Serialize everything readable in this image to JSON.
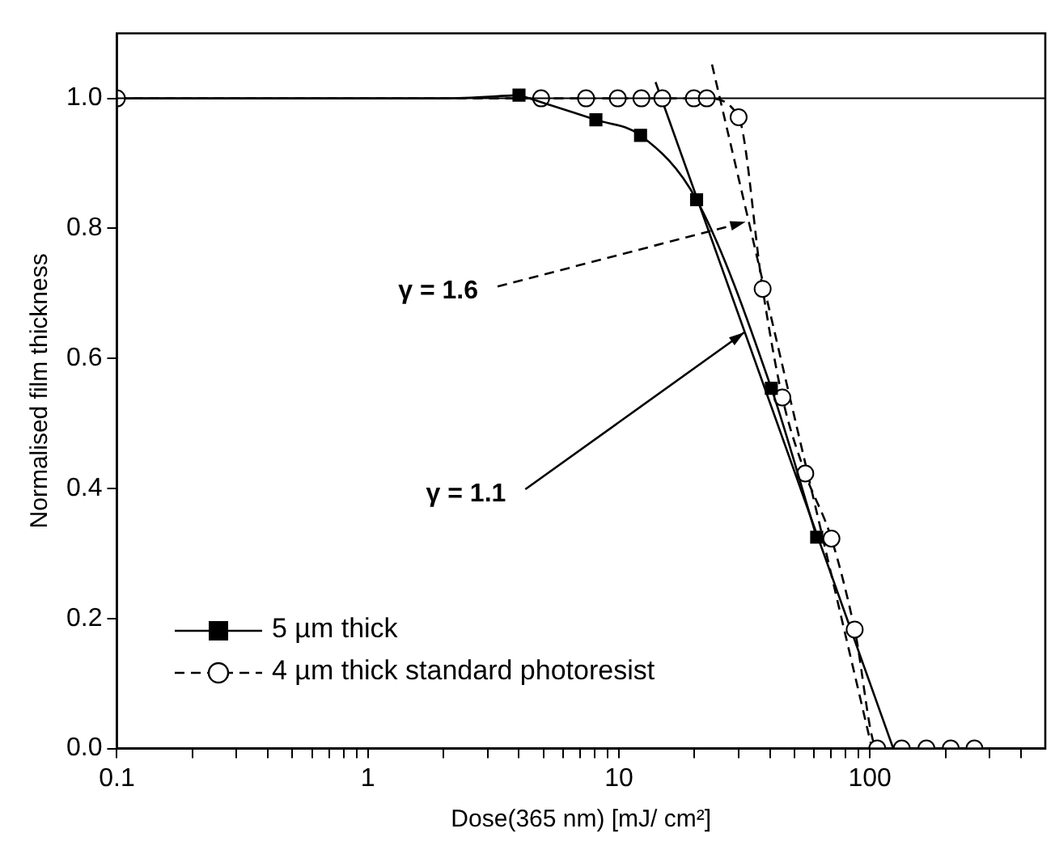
{
  "chart_data": {
    "type": "line",
    "xlabel": "Dose(365 nm) [mJ/ cm²]",
    "ylabel": "Normalised film thickness",
    "log": "x",
    "grid": false,
    "legend": "bottom left",
    "xlim": [
      0.1,
      500
    ],
    "ylim": [
      0,
      1.1
    ],
    "xticks": [
      0.1,
      {
        "value": 0.2,
        "label": null
      },
      {
        "value": 0.3,
        "label": null
      },
      {
        "value": 0.4,
        "label": null
      },
      {
        "value": 0.5,
        "label": null
      },
      {
        "value": 0.6,
        "label": null
      },
      {
        "value": 0.7,
        "label": null
      },
      {
        "value": 0.8,
        "label": null
      },
      {
        "value": 0.9,
        "label": null
      },
      1,
      {
        "value": 2,
        "label": null
      },
      {
        "value": 3,
        "label": null
      },
      {
        "value": 4,
        "label": null
      },
      {
        "value": 5,
        "label": null
      },
      {
        "value": 6,
        "label": null
      },
      {
        "value": 7,
        "label": null
      },
      {
        "value": 8,
        "label": null
      },
      {
        "value": 9,
        "label": null
      },
      10,
      {
        "value": 20,
        "label": null
      },
      {
        "value": 30,
        "label": null
      },
      {
        "value": 40,
        "label": null
      },
      {
        "value": 50,
        "label": null
      },
      {
        "value": 60,
        "label": null
      },
      {
        "value": 70,
        "label": null
      },
      {
        "value": 80,
        "label": null
      },
      {
        "value": 90,
        "label": null
      },
      100,
      {
        "value": 200,
        "label": null
      },
      {
        "value": 300,
        "label": null
      },
      {
        "value": 400,
        "label": null
      }
    ],
    "yticks": [
      {
        "value": 0,
        "label": "0.0"
      },
      0.2,
      0.4,
      0.6,
      0.8,
      {
        "value": 1,
        "label": "1.0"
      }
    ],
    "ref_lines": [
      {
        "axis": "y",
        "value": 1.0,
        "color": "#000000",
        "line_style": "solid"
      }
    ],
    "annotations": [
      {
        "text": "γ = 1.6",
        "x": 32,
        "y": 0.81
      },
      {
        "text": "γ = 1.1",
        "x": 31.6,
        "y": 0.64
      }
    ],
    "series": [
      {
        "name": "5 µm thick",
        "color": "#000000",
        "marker": "square",
        "line_style": "solid",
        "x": [
          4.0,
          8.1,
          12.2,
          20.4,
          40.5,
          61.4
        ],
        "values": [
          1.005,
          0.967,
          0.943,
          0.844,
          0.554,
          0.325
        ]
      },
      {
        "name": "4 µm thick standard photoresist",
        "color": "#000000",
        "marker": "circle",
        "line_style": "dashed",
        "x": [
          0.1,
          4.9,
          7.4,
          9.9,
          12.3,
          14.9,
          19.9,
          22.4,
          30,
          37.4,
          44.8,
          55.3,
          70.3,
          87,
          107,
          134,
          168,
          210,
          261
        ],
        "values": [
          1.0,
          1.0,
          1.0,
          1.0,
          1.0,
          1.0,
          1.0,
          1.0,
          0.971,
          0.707,
          0.54,
          0.423,
          0.323,
          0.183,
          0,
          0,
          0,
          0,
          0
        ]
      },
      {
        "color": "#000000",
        "marker": "none",
        "line_style": "solid",
        "x": [
          0.1,
          1,
          2,
          4.0
        ],
        "values": [
          1.0,
          1.0,
          1.0,
          1.005
        ]
      },
      {
        "color": "#000000",
        "marker": "none",
        "line_style": "solid",
        "x": [
          14,
          124
        ],
        "values": [
          1.025,
          0
        ]
      },
      {
        "color": "#000000",
        "marker": "none",
        "line_style": "dashed",
        "x": [
          23.5,
          102
        ],
        "values": [
          1.052,
          0
        ]
      }
    ]
  }
}
